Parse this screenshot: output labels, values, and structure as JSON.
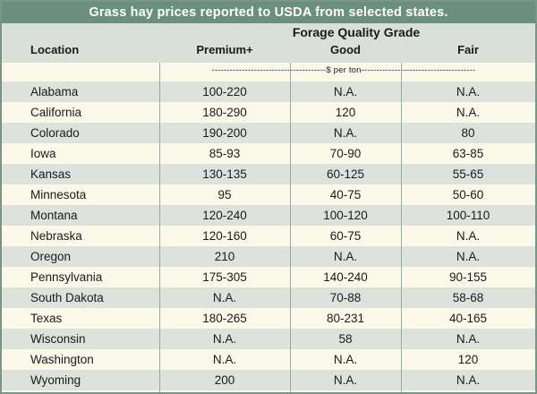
{
  "title": "Grass hay prices reported to USDA from selected states.",
  "header": {
    "location": "Location",
    "grade_title": "Forage Quality Grade",
    "premium": "Premium+",
    "good": "Good",
    "fair": "Fair",
    "units": "--------------------------------------$ per ton--------------------------------------"
  },
  "rows": [
    {
      "location": "Alabama",
      "premium": "100-220",
      "good": "N.A.",
      "fair": "N.A."
    },
    {
      "location": "California",
      "premium": "180-290",
      "good": "120",
      "fair": "N.A."
    },
    {
      "location": "Colorado",
      "premium": "190-200",
      "good": "N.A.",
      "fair": "80"
    },
    {
      "location": "Iowa",
      "premium": "85-93",
      "good": "70-90",
      "fair": "63-85"
    },
    {
      "location": "Kansas",
      "premium": "130-135",
      "good": "60-125",
      "fair": "55-65"
    },
    {
      "location": "Minnesota",
      "premium": "95",
      "good": "40-75",
      "fair": "50-60"
    },
    {
      "location": "Montana",
      "premium": "120-240",
      "good": "100-120",
      "fair": "100-110"
    },
    {
      "location": "Nebraska",
      "premium": "120-160",
      "good": "60-75",
      "fair": "N.A."
    },
    {
      "location": "Oregon",
      "premium": "210",
      "good": "N.A.",
      "fair": "N.A."
    },
    {
      "location": "Pennsylvania",
      "premium": "175-305",
      "good": "140-240",
      "fair": "90-155"
    },
    {
      "location": "South Dakota",
      "premium": "N.A.",
      "good": "70-88",
      "fair": "58-68"
    },
    {
      "location": "Texas",
      "premium": "180-265",
      "good": "80-231",
      "fair": "40-165"
    },
    {
      "location": "Wisconsin",
      "premium": "N.A.",
      "good": "58",
      "fair": "N.A."
    },
    {
      "location": "Washington",
      "premium": "N.A.",
      "good": "N.A.",
      "fair": "120"
    },
    {
      "location": "Wyoming",
      "premium": "200",
      "good": "N.A.",
      "fair": "N.A."
    }
  ]
}
